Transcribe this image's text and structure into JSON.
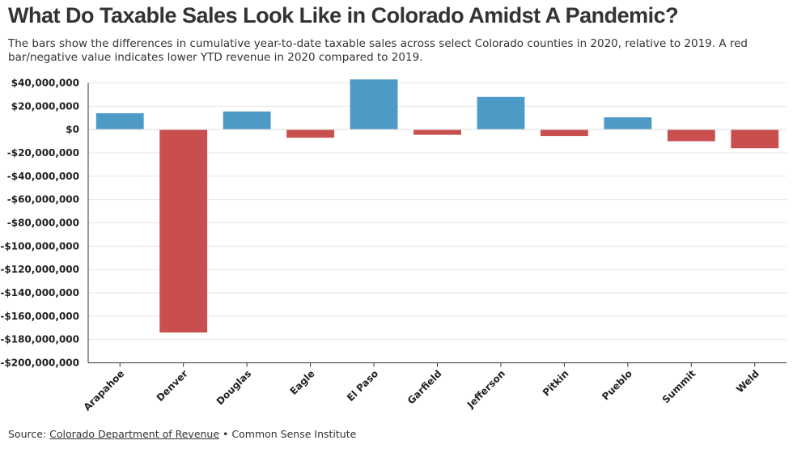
{
  "header": {
    "title": "What Do Taxable Sales Look Like in Colorado Amidst A Pandemic?",
    "subtitle": "The bars show the differences in cumulative year-to-date taxable sales across select Colorado counties in 2020, relative to 2019. A red bar/negative value indicates lower YTD revenue in 2020 compared to 2019."
  },
  "footer": {
    "source_prefix": "Source: ",
    "source_link": "Colorado Department of Revenue",
    "separator": " • ",
    "source_other": "Common Sense Institute"
  },
  "colors": {
    "positive": "#4e9ac7",
    "negative": "#c94f4f",
    "grid": "#e6e6e6",
    "axis": "#333333"
  },
  "chart_data": {
    "type": "bar",
    "title": "What Do Taxable Sales Look Like in Colorado Amidst A Pandemic?",
    "xlabel": "",
    "ylabel": "",
    "categories": [
      "Arapahoe",
      "Denver",
      "Douglas",
      "Eagle",
      "El Paso",
      "Garfield",
      "Jefferson",
      "Pitkin",
      "Pueblo",
      "Summit",
      "Weld"
    ],
    "values": [
      14000000,
      -174000000,
      15500000,
      -7000000,
      43000000,
      -4500000,
      28000000,
      -5500000,
      10500000,
      -10000000,
      -16000000
    ],
    "ylim": [
      -200000000,
      40000000
    ],
    "yticks": [
      40000000,
      20000000,
      0,
      -20000000,
      -40000000,
      -60000000,
      -80000000,
      -100000000,
      -120000000,
      -140000000,
      -160000000,
      -180000000,
      -200000000
    ],
    "ytick_labels": [
      "$40,000,000",
      "$20,000,000",
      "$0",
      "-$20,000,000",
      "-$40,000,000",
      "-$60,000,000",
      "-$80,000,000",
      "-$100,000,000",
      "-$120,000,000",
      "-$140,000,000",
      "-$160,000,000",
      "-$180,000,000",
      "-$200,000,000"
    ],
    "grid": true,
    "legend": "none"
  }
}
